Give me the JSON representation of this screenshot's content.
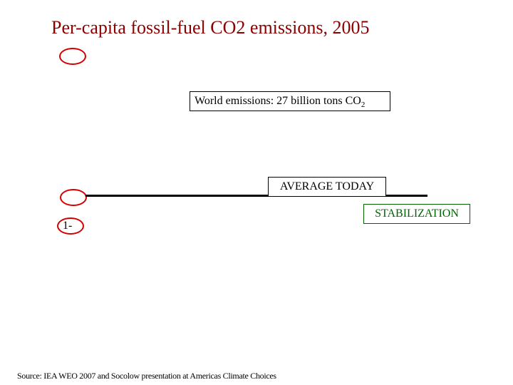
{
  "title": "Per-capita fossil-fuel CO2 emissions, 2005",
  "world_box": {
    "text": "World emissions: 27 billion tons CO",
    "subscript": "2"
  },
  "average_label": "AVERAGE TODAY",
  "stabilization_label": "STABILIZATION",
  "oval_label": "1-",
  "source": "Source: IEA WEO 2007 and Socolow presentation at Americas Climate Choices",
  "colors": {
    "title": "#8b0000",
    "oval": "#d40000",
    "stabilization": "#006400"
  }
}
